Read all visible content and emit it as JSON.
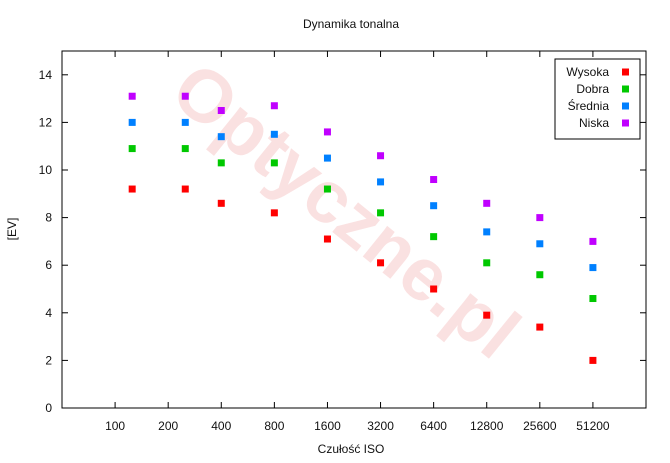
{
  "watermark": "Optyczne.pl",
  "chart_data": {
    "type": "scatter",
    "title": "Dynamika tonalna",
    "xlabel": "Czułość ISO",
    "ylabel": "[EV]",
    "x_tick_labels": [
      "100",
      "200",
      "400",
      "800",
      "1600",
      "3200",
      "6400",
      "12800",
      "25600",
      "51200"
    ],
    "ylim": [
      0,
      15
    ],
    "y_ticks": [
      0,
      2,
      4,
      6,
      8,
      10,
      12,
      14
    ],
    "grid": false,
    "legend_position": "top-right",
    "series": [
      {
        "name": "Wysoka",
        "color": "#ff0000",
        "points": [
          [
            125,
            9.2
          ],
          [
            250,
            9.2
          ],
          [
            400,
            8.6
          ],
          [
            800,
            8.2
          ],
          [
            1600,
            7.1
          ],
          [
            3200,
            6.1
          ],
          [
            6400,
            5.0
          ],
          [
            12800,
            3.9
          ],
          [
            25600,
            3.4
          ],
          [
            51200,
            2.0
          ]
        ]
      },
      {
        "name": "Dobra",
        "color": "#00c800",
        "points": [
          [
            125,
            10.9
          ],
          [
            250,
            10.9
          ],
          [
            400,
            10.3
          ],
          [
            800,
            10.3
          ],
          [
            1600,
            9.2
          ],
          [
            3200,
            8.2
          ],
          [
            6400,
            7.2
          ],
          [
            12800,
            6.1
          ],
          [
            25600,
            5.6
          ],
          [
            51200,
            4.6
          ]
        ]
      },
      {
        "name": "Średnia",
        "color": "#0080ff",
        "points": [
          [
            125,
            12.0
          ],
          [
            250,
            12.0
          ],
          [
            400,
            11.4
          ],
          [
            800,
            11.5
          ],
          [
            1600,
            10.5
          ],
          [
            3200,
            9.5
          ],
          [
            6400,
            8.5
          ],
          [
            12800,
            7.4
          ],
          [
            25600,
            6.9
          ],
          [
            51200,
            5.9
          ]
        ]
      },
      {
        "name": "Niska",
        "color": "#c000ff",
        "points": [
          [
            125,
            13.1
          ],
          [
            250,
            13.1
          ],
          [
            400,
            12.5
          ],
          [
            800,
            12.7
          ],
          [
            1600,
            11.6
          ],
          [
            3200,
            10.6
          ],
          [
            6400,
            9.6
          ],
          [
            12800,
            8.6
          ],
          [
            25600,
            8.0
          ],
          [
            51200,
            7.0
          ]
        ]
      }
    ]
  }
}
